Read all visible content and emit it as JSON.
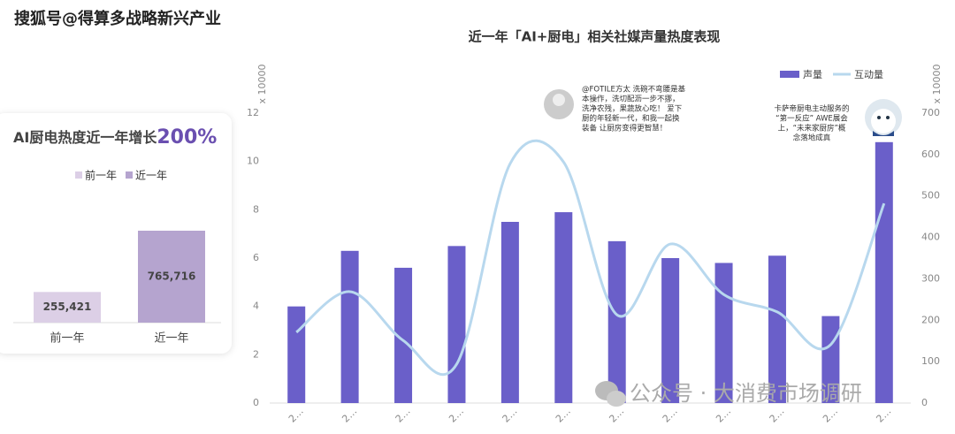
{
  "watermark_top": "搜狐号@得算多战略新兴产业",
  "watermark_bottom": "公众号 · 大消费市场调研",
  "chart_data": [
    {
      "type": "bar",
      "title": "AI厨电热度近一年增长",
      "title_highlight": "200%",
      "categories": [
        "前一年",
        "近一年"
      ],
      "values": [
        255421,
        765716
      ],
      "value_labels": [
        "255,421",
        "765,716"
      ],
      "colors": [
        "#dccfe6",
        "#b5a4cf"
      ]
    },
    {
      "type": "bar-line",
      "title": "近一年「AI+厨电」相关社媒声量热度表现",
      "ylabel": "x 10000",
      "y2label": "x 10000",
      "categories": [
        "2…",
        "2…",
        "2…",
        "2…",
        "2…",
        "2…",
        "2…",
        "2…",
        "2…",
        "2…",
        "2…",
        "2…"
      ],
      "series": [
        {
          "name": "声量",
          "color": "#6a5fc9",
          "values": [
            4.0,
            6.3,
            5.6,
            6.5,
            7.5,
            7.9,
            6.7,
            6.0,
            5.8,
            6.1,
            3.6,
            10.8
          ]
        },
        {
          "name": "互动量",
          "color": "#b8d8ee",
          "axis": "y2",
          "values": [
            171,
            269,
            151,
            94,
            578,
            582,
            213,
            384,
            262,
            220,
            141,
            482
          ]
        }
      ],
      "ylim": [
        0,
        12
      ],
      "yticks": [
        0,
        2,
        4,
        6,
        8,
        10,
        12
      ],
      "y2lim": [
        0,
        700
      ],
      "y2ticks": [
        0,
        100,
        200,
        300,
        400,
        500,
        600,
        700
      ],
      "legend": "top-right",
      "annotations": [
        {
          "lines": [
            "@FOTILE方太 洗碗不弯腰是基",
            "本操作，洗切配沥一步不挪，",
            "洗净农残，果蔬放心吃！ 爱下",
            "厨的年轻新一代，和我一起换",
            "装备 让厨房变得更智慧！"
          ]
        },
        {
          "lines": [
            "卡萨帝厨电主动服务的",
            "“第一反应” AWE展会",
            "上，“未来家厨房”概",
            "念落地成真"
          ]
        }
      ]
    }
  ]
}
